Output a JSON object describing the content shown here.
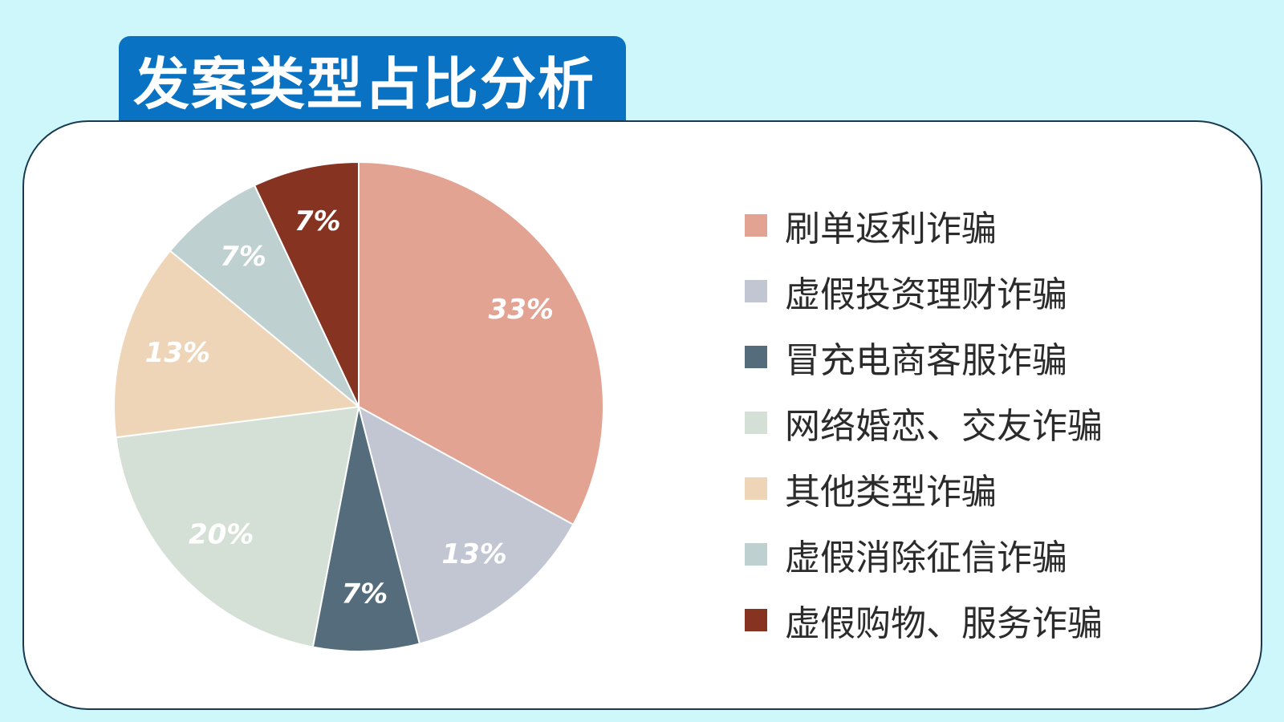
{
  "header": {
    "title": "发案类型占比分析"
  },
  "chart_data": {
    "type": "pie",
    "categories": [
      "刷单返利诈骗",
      "虚假投资理财诈骗",
      "冒充电商客服诈骗",
      "网络婚恋、交友诈骗",
      "其他类型诈骗",
      "虚假消除征信诈骗",
      "虚假购物、服务诈骗"
    ],
    "values": [
      33,
      13,
      7,
      20,
      13,
      7,
      7
    ],
    "labels": [
      "33%",
      "13%",
      "7%",
      "20%",
      "13%",
      "7%",
      "7%"
    ],
    "colors": [
      "#e3a393",
      "#c2c6d3",
      "#546c7c",
      "#d4e0d6",
      "#efd5b8",
      "#bed1d0",
      "#873322"
    ],
    "legend_position": "right"
  }
}
